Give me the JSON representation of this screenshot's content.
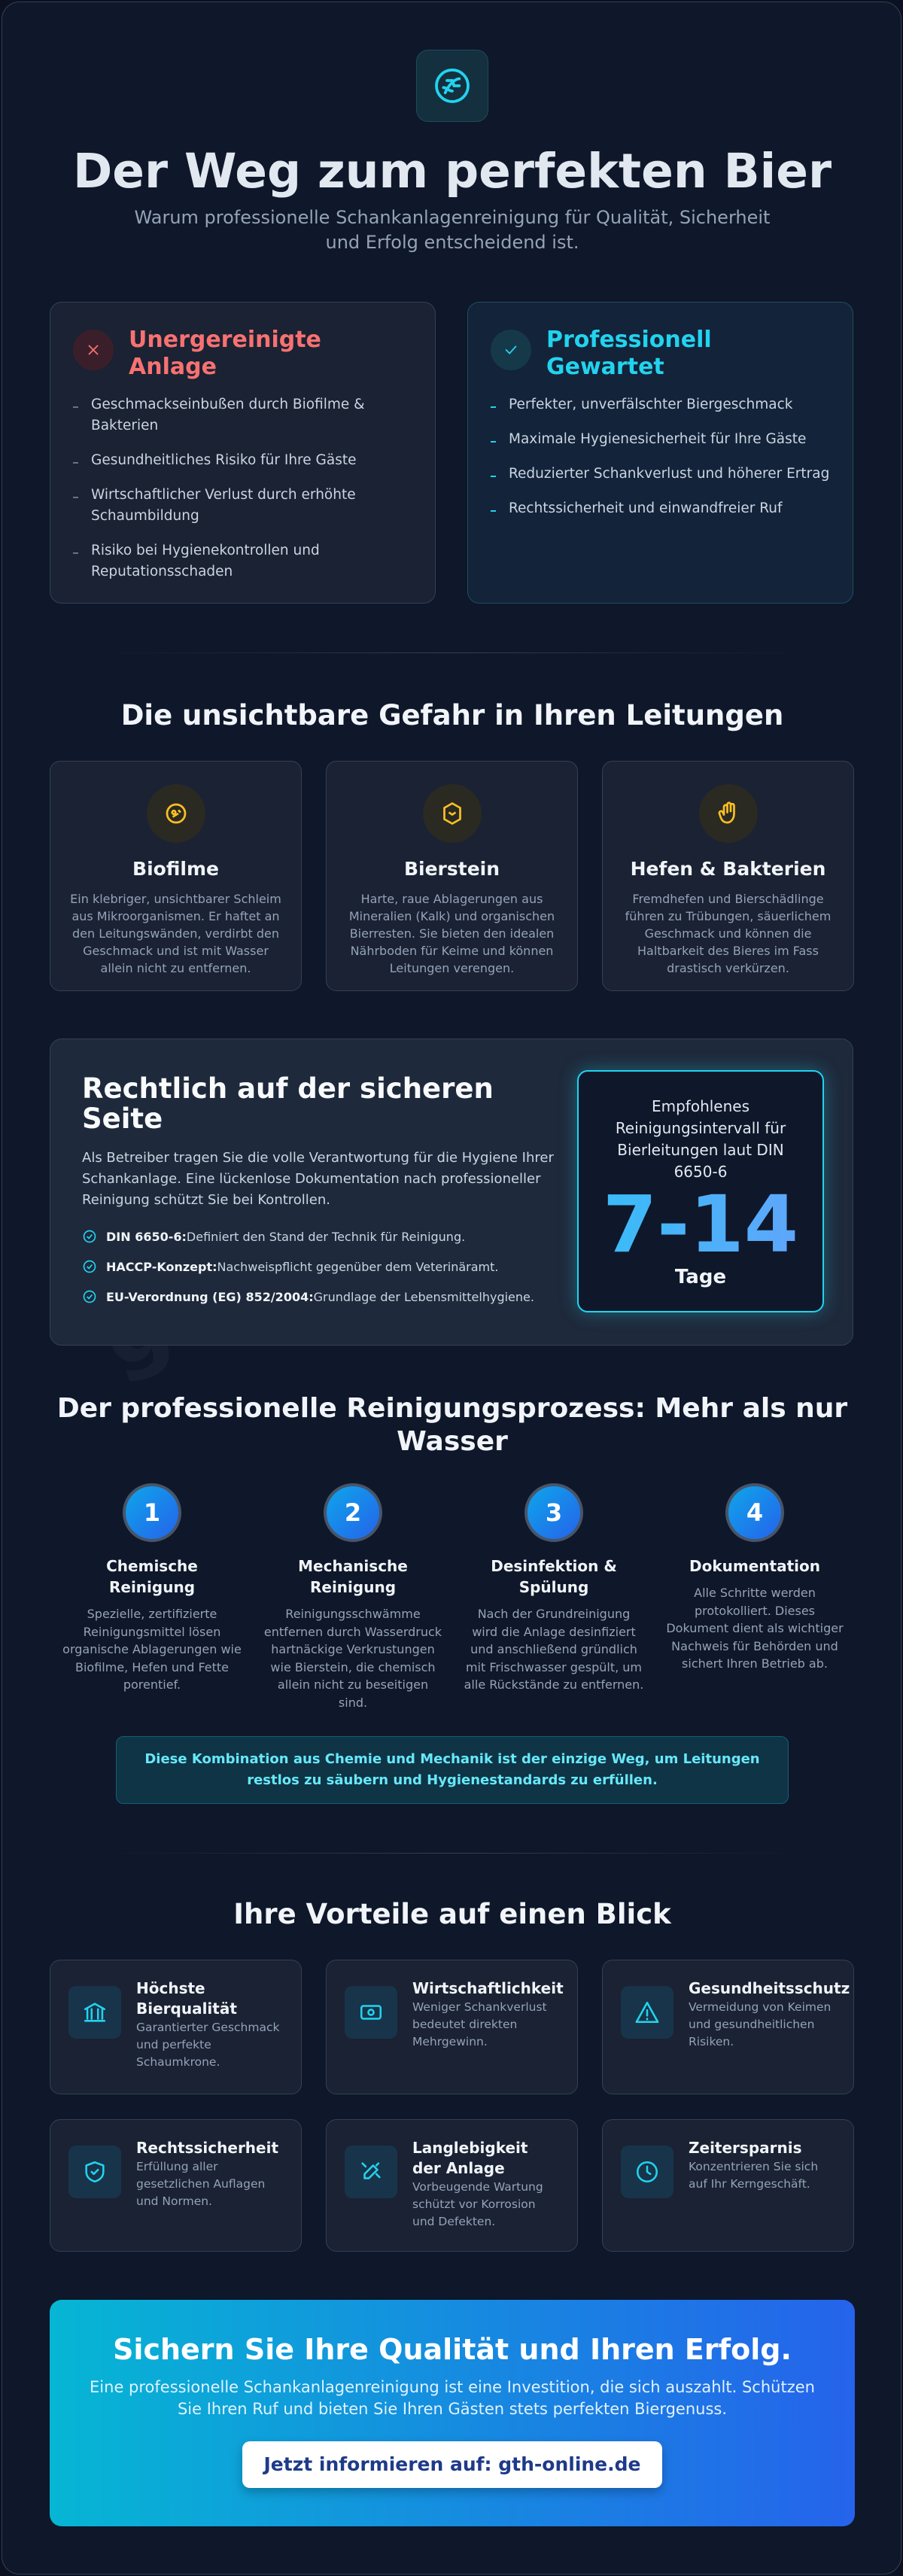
{
  "watermark": "gth-online",
  "header": {
    "title": "Der Weg zum perfekten Bier",
    "subtitle": "Warum professionelle Schankanlagenreinigung für Qualität, Sicherheit und Erfolg entscheidend ist."
  },
  "comparison": [
    {
      "title": "Unergereinigte Anlage",
      "items": [
        "Geschmackseinbußen durch Biofilme & Bakterien",
        "Gesundheitliches Risiko für Ihre Gäste",
        "Wirtschaftlicher Verlust durch erhöhte Schaumbildung",
        "Risiko bei Hygienekontrollen und Reputationsschaden"
      ]
    },
    {
      "title": "Professionell Gewartet",
      "items": [
        "Perfekter, unverfälschter Biergeschmack",
        "Maximale Hygienesicherheit für Ihre Gäste",
        "Reduzierter Schankverlust und höherer Ertrag",
        "Rechtssicherheit und einwandfreier Ruf"
      ]
    }
  ],
  "dangers": {
    "title": "Die unsichtbare Gefahr in Ihren Leitungen",
    "cards": [
      {
        "title": "Biofilme",
        "text": "Ein klebriger, unsichtbarer Schleim aus Mikroorganismen. Er haftet an den Leitungswänden, verdirbt den Geschmack und ist mit Wasser allein nicht zu entfernen."
      },
      {
        "title": "Bierstein",
        "text": "Harte, raue Ablagerungen aus Mineralien (Kalk) und organischen Bierresten. Sie bieten den idealen Nährboden für Keime und können Leitungen verengen."
      },
      {
        "title": "Hefen & Bakterien",
        "text": "Fremdhefen und Bierschädlinge führen zu Trübungen, säuerlichem Geschmack und können die Haltbarkeit des Bieres im Fass drastisch verkürzen."
      }
    ]
  },
  "legal": {
    "title": "Rechtlich auf der sicheren Seite",
    "text": "Als Betreiber tragen Sie die volle Verantwortung für die Hygiene Ihrer Schankanlage. Eine lückenlose Dokumentation nach professioneller Reinigung schützt Sie bei Kontrollen.",
    "items": [
      {
        "label": "DIN 6650-6:",
        "text": "Definiert den Stand der Technik für Reinigung."
      },
      {
        "label": "HACCP-Konzept:",
        "text": "Nachweispflicht gegenüber dem Veterinäramt."
      },
      {
        "label": "EU-Verordnung (EG) 852/2004:",
        "text": "Grundlage der Lebensmittelhygiene."
      }
    ],
    "recommendation": {
      "label": "Empfohlenes Reinigungsintervall für Bierleitungen laut DIN 6650-6",
      "value": "7-14",
      "unit": "Tage"
    }
  },
  "process": {
    "title": "Der professionelle Reinigungsprozess: Mehr als nur Wasser",
    "steps": [
      {
        "number": 1,
        "title": "Chemische Reinigung",
        "text": "Spezielle, zertifizierte Reinigungsmittel lösen organische Ablagerungen wie Biofilme, Hefen und Fette porentief."
      },
      {
        "number": 2,
        "title": "Mechanische Reinigung",
        "text": "Reinigungsschwämme entfernen durch Wasserdruck hartnäckige Verkrustungen wie Bierstein, die chemisch allein nicht zu beseitigen sind."
      },
      {
        "number": 3,
        "title": "Desinfektion & Spülung",
        "text": "Nach der Grundreinigung wird die Anlage desinfiziert und anschließend gründlich mit Frischwasser gespült, um alle Rückstände zu entfernen."
      },
      {
        "number": 4,
        "title": "Dokumentation",
        "text": "Alle Schritte werden protokolliert. Dieses Dokument dient als wichtiger Nachweis für Behörden und sichert Ihren Betrieb ab."
      }
    ],
    "note": "Diese Kombination aus Chemie und Mechanik ist der einzige Weg, um Leitungen restlos zu säubern und Hygienestandards zu erfüllen."
  },
  "benefits": {
    "title": "Ihre Vorteile auf einen Blick",
    "items": [
      {
        "title": "Höchste Bierqualität",
        "text": "Garantierter Geschmack und perfekte Schaumkrone."
      },
      {
        "title": "Wirtschaftlichkeit",
        "text": "Weniger Schankverlust bedeutet direkten Mehrgewinn."
      },
      {
        "title": "Gesundheitsschutz",
        "text": "Vermeidung von Keimen und gesundheitlichen Risiken."
      },
      {
        "title": "Rechtssicherheit",
        "text": "Erfüllung aller gesetzlichen Auflagen und Normen."
      },
      {
        "title": "Langlebigkeit der Anlage",
        "text": "Vorbeugende Wartung schützt vor Korrosion und Defekten."
      },
      {
        "title": "Zeitersparnis",
        "text": "Konzentrieren Sie sich auf Ihr Kerngeschäft."
      }
    ]
  },
  "cta": {
    "title": "Sichern Sie Ihre Qualität und Ihren Erfolg.",
    "text": "Eine professionelle Schankanlagenreinigung ist eine Investition, die sich auszahlt. Schützen Sie Ihren Ruf und bieten Sie Ihren Gästen stets perfekten Biergenuss.",
    "button": "Jetzt informieren auf: gth-online.de"
  }
}
